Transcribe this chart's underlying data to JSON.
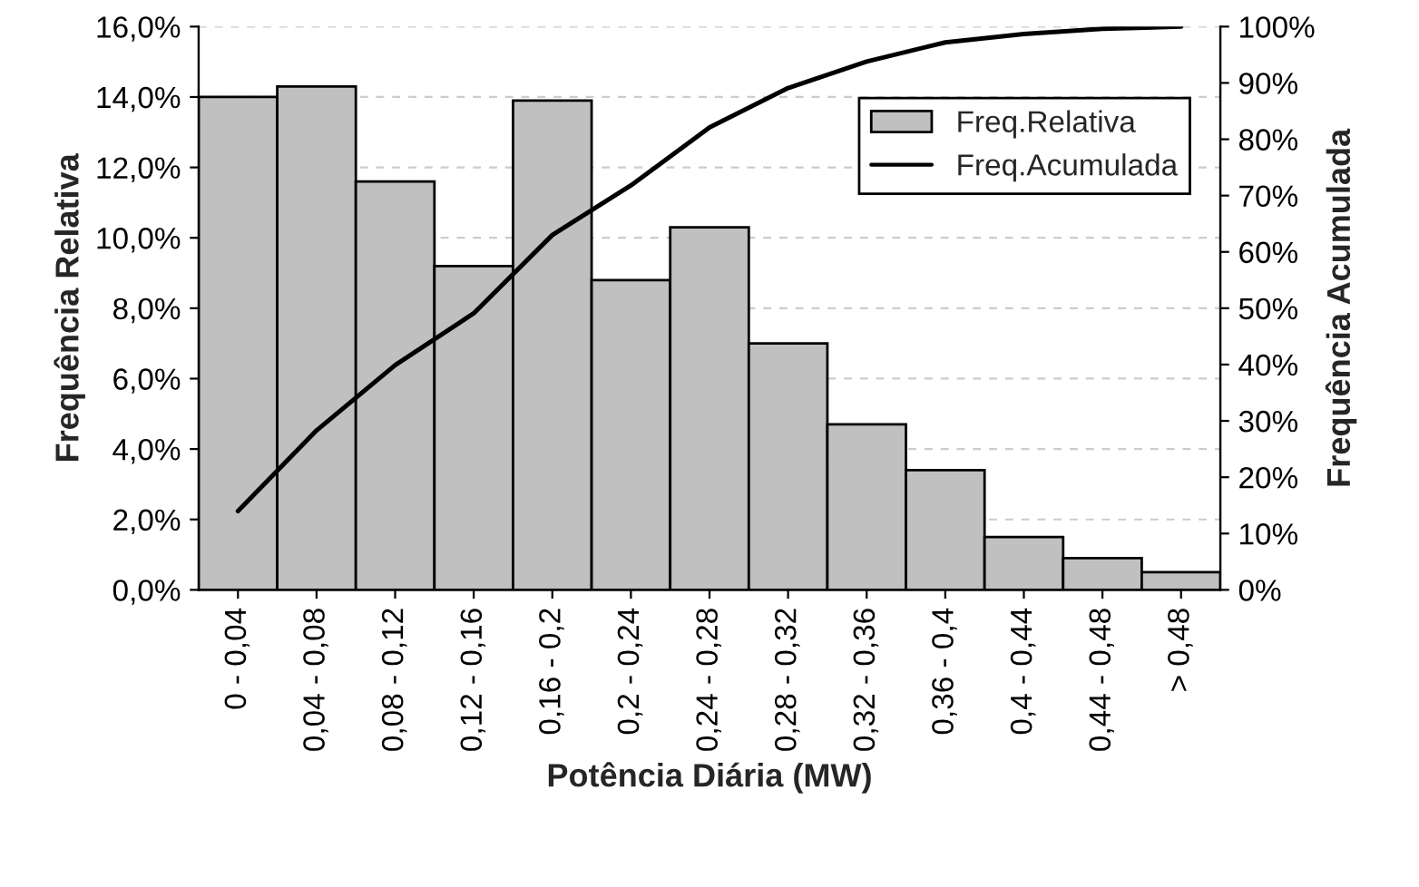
{
  "chart_data": {
    "type": "bar",
    "xlabel": "Potência Diária (MW)",
    "ylabel": "Frequência Relativa",
    "y2label": "Frequência Acumulada",
    "categories": [
      "0 - 0,04",
      "0,04 - 0,08",
      "0,08 - 0,12",
      "0,12 - 0,16",
      "0,16 - 0,2",
      "0,2 - 0,24",
      "0,24 - 0,28",
      "0,28 - 0,32",
      "0,32 - 0,36",
      "0,36 - 0,4",
      "0,4 - 0,44",
      "0,44 - 0,48",
      "> 0,48"
    ],
    "series": [
      {
        "name": "Freq.Relativa",
        "color": "#c0c0c0",
        "values": [
          14.0,
          14.3,
          11.6,
          9.2,
          13.9,
          8.8,
          10.3,
          7.0,
          4.7,
          3.4,
          1.5,
          0.9,
          0.5
        ]
      },
      {
        "name": "Freq.Acumulada",
        "type": "line",
        "axis": "y2",
        "color": "#000000",
        "values": [
          14.0,
          28.3,
          39.9,
          49.1,
          63.0,
          71.8,
          82.1,
          89.1,
          93.8,
          97.2,
          98.7,
          99.6,
          100.0
        ]
      }
    ],
    "ylim": [
      0,
      16
    ],
    "yticks": [
      {
        "value": 0,
        "label": "0,0%"
      },
      {
        "value": 2,
        "label": "2,0%"
      },
      {
        "value": 4,
        "label": "4,0%"
      },
      {
        "value": 6,
        "label": "6,0%"
      },
      {
        "value": 8,
        "label": "8,0%"
      },
      {
        "value": 10,
        "label": "10,0%"
      },
      {
        "value": 12,
        "label": "12,0%"
      },
      {
        "value": 14,
        "label": "14,0%"
      },
      {
        "value": 16,
        "label": "16,0%"
      }
    ],
    "y2lim": [
      0,
      100
    ],
    "y2ticks": [
      {
        "value": 0,
        "label": "0%"
      },
      {
        "value": 10,
        "label": "10%"
      },
      {
        "value": 20,
        "label": "20%"
      },
      {
        "value": 30,
        "label": "30%"
      },
      {
        "value": 40,
        "label": "40%"
      },
      {
        "value": 50,
        "label": "50%"
      },
      {
        "value": 60,
        "label": "60%"
      },
      {
        "value": 70,
        "label": "70%"
      },
      {
        "value": 80,
        "label": "80%"
      },
      {
        "value": 90,
        "label": "90%"
      },
      {
        "value": 100,
        "label": "100%"
      }
    ],
    "grid": "y",
    "legend": "top right",
    "marker": "none",
    "line_style": "solid"
  }
}
